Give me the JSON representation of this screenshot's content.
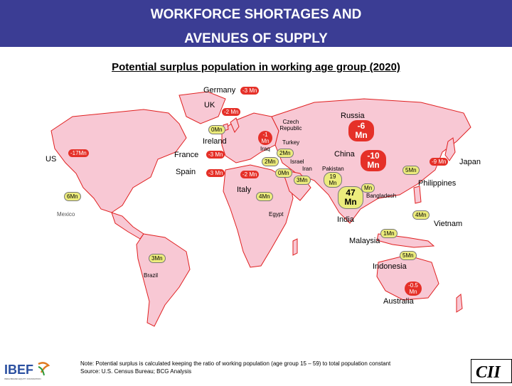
{
  "header": {
    "title_line1": "WORKFORCE SHORTAGES AND",
    "title_line2": "AVENUES OF SUPPLY",
    "bg_color": "#3b3d94"
  },
  "subtitle": "Potential surplus population in working age group (2020)",
  "colors": {
    "land": "#f8c8d4",
    "border": "#e02020",
    "shortage_bubble": "#e53028",
    "surplus_bubble": "#ecec7c"
  },
  "countries": {
    "germany": "Germany",
    "uk": "UK",
    "ireland": "Ireland",
    "us": "US",
    "france": "France",
    "spain": "Spain",
    "italy": "Italy",
    "czech": "Czech Republic",
    "turkey": "Turkey",
    "iraq": "Iraq",
    "israel": "Israel",
    "iran": "Iran",
    "egypt": "Egypt",
    "russia": "Russia",
    "china": "China",
    "pakistan": "Pakistan",
    "india": "India",
    "bangladesh": "Bangladesh",
    "japan": "Japan",
    "philippines": "Philippines",
    "vietnam": "Vietnam",
    "malaysia": "Malaysia",
    "indonesia": "Indonesia",
    "australia": "Australia",
    "brazil": "Brazil",
    "mexico": "Mexico"
  },
  "values": {
    "germany": "-3 Mn",
    "uk": "-2 Mn",
    "ireland": "0Mn",
    "us": "-17Mn",
    "france": "-3 Mn",
    "spain": "-3 Mn",
    "italy": "-2 Mn",
    "czech": "-1 Mn",
    "turkey": "2Mn",
    "iraq": "2Mn",
    "israel": "0Mn",
    "iran": "3Mn",
    "egypt": "4Mn",
    "russia": "-6 Mn",
    "china": "-10 Mn",
    "pakistan": "19 Mn",
    "india": "47 Mn",
    "bangladesh": "Mn",
    "japan": "-9 Mn",
    "philippines": "5Mn",
    "vietnam": "4Mn",
    "malaysia": "1Mn",
    "indonesia": "5Mn",
    "australia": "-0.5 Mn",
    "brazil": "3Mn",
    "mexico": "6Mn"
  },
  "note": {
    "line1": "Note:  Potential surplus is calculated keeping the ratio of working population (age group 15 – 59) to total population constant",
    "line2": "Source:  U.S. Census Bureau; BCG Analysis"
  },
  "logos": {
    "left": "IBEF",
    "left_tagline": "INDIA BRAND EQUITY FOUNDATION",
    "right": "CII"
  }
}
